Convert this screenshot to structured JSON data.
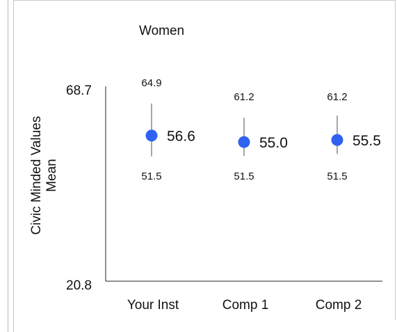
{
  "chart_data": {
    "type": "scatter",
    "title": "Women",
    "ylabel_lines": [
      "Civic Minded Values",
      "Mean"
    ],
    "ylim": [
      20.8,
      68.7
    ],
    "ytick_labels": [
      "68.7",
      "20.8"
    ],
    "categories": [
      "Your Inst",
      "Comp 1",
      "Comp 2"
    ],
    "values": [
      56.6,
      55.0,
      55.5
    ],
    "value_labels": [
      "56.6",
      "55.0",
      "55.5"
    ],
    "upper": [
      64.9,
      61.2,
      61.2
    ],
    "upper_labels": [
      "64.9",
      "61.2",
      "61.2"
    ],
    "lower": [
      51.5,
      51.5,
      51.5
    ],
    "lower_labels": [
      "51.5",
      "51.5",
      "51.5"
    ],
    "marker_color": "#2f62f0",
    "errorbar_color": "#777777",
    "grid": false
  }
}
